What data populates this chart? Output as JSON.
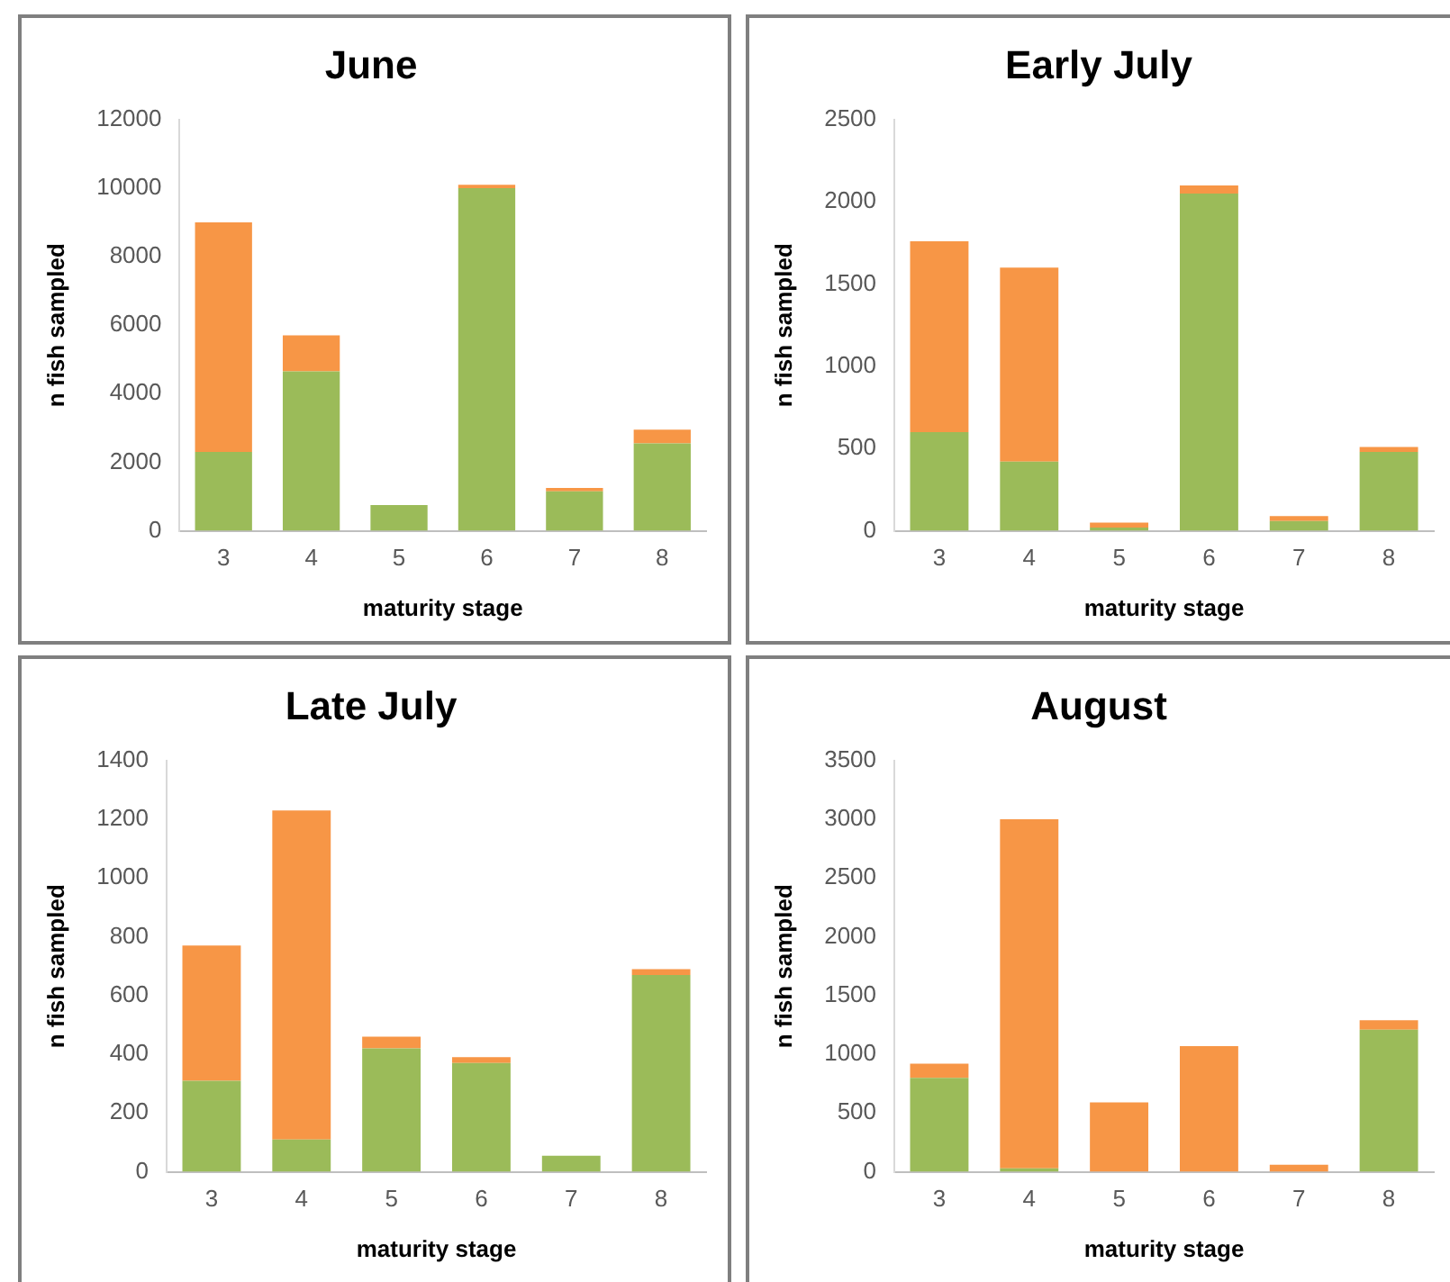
{
  "chart_data": [
    {
      "type": "bar",
      "title": "June",
      "xlabel": "maturity stage",
      "ylabel": "n fish sampled",
      "categories": [
        "3",
        "4",
        "5",
        "6",
        "7",
        "8"
      ],
      "stacked": true,
      "ylim": [
        0,
        12000
      ],
      "yticks": [
        0,
        2000,
        4000,
        6000,
        8000,
        10000,
        12000
      ],
      "grid": false,
      "legend": false,
      "series": [
        {
          "color": "#9bbb59",
          "values": [
            2300,
            4650,
            750,
            10000,
            1150,
            2550
          ]
        },
        {
          "color": "#f79646",
          "values": [
            6700,
            1050,
            0,
            100,
            100,
            400
          ]
        }
      ]
    },
    {
      "type": "bar",
      "title": "Early July",
      "xlabel": "maturity stage",
      "ylabel": "n fish sampled",
      "categories": [
        "3",
        "4",
        "5",
        "6",
        "7",
        "8"
      ],
      "stacked": true,
      "ylim": [
        0,
        2500
      ],
      "yticks": [
        0,
        500,
        1000,
        1500,
        2000,
        2500
      ],
      "grid": false,
      "legend": false,
      "series": [
        {
          "color": "#9bbb59",
          "values": [
            600,
            420,
            20,
            2050,
            60,
            480
          ]
        },
        {
          "color": "#f79646",
          "values": [
            1160,
            1180,
            30,
            50,
            30,
            30
          ]
        }
      ]
    },
    {
      "type": "bar",
      "title": "Late July",
      "xlabel": "maturity stage",
      "ylabel": "n fish sampled",
      "categories": [
        "3",
        "4",
        "5",
        "6",
        "7",
        "8"
      ],
      "stacked": true,
      "ylim": [
        0,
        1400
      ],
      "yticks": [
        0,
        200,
        400,
        600,
        800,
        1000,
        1200,
        1400
      ],
      "grid": false,
      "legend": false,
      "series": [
        {
          "color": "#9bbb59",
          "values": [
            310,
            110,
            420,
            370,
            55,
            670
          ]
        },
        {
          "color": "#f79646",
          "values": [
            460,
            1120,
            40,
            20,
            0,
            20
          ]
        }
      ]
    },
    {
      "type": "bar",
      "title": "August",
      "xlabel": "maturity stage",
      "ylabel": "n fish sampled",
      "categories": [
        "3",
        "4",
        "5",
        "6",
        "7",
        "8"
      ],
      "stacked": true,
      "ylim": [
        0,
        3500
      ],
      "yticks": [
        0,
        500,
        1000,
        1500,
        2000,
        2500,
        3000,
        3500
      ],
      "grid": false,
      "legend": false,
      "series": [
        {
          "color": "#9bbb59",
          "values": [
            800,
            30,
            0,
            0,
            0,
            1210
          ]
        },
        {
          "color": "#f79646",
          "values": [
            120,
            2970,
            590,
            1070,
            60,
            80
          ]
        }
      ]
    }
  ]
}
